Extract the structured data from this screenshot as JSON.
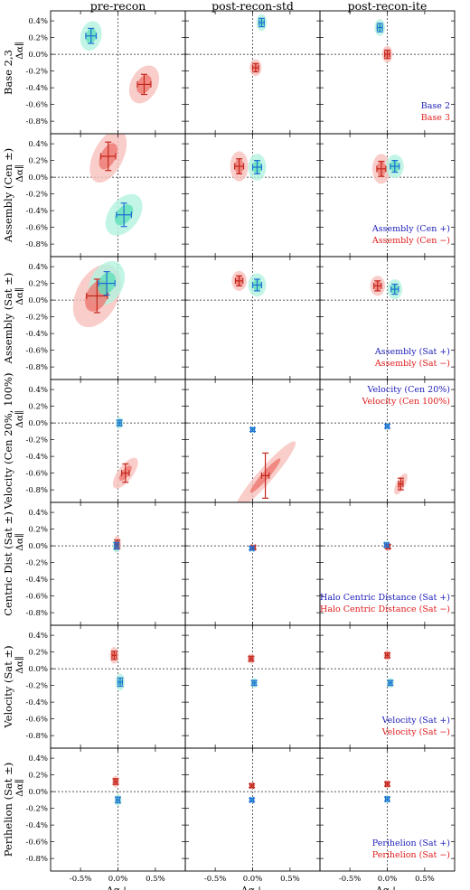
{
  "colors": {
    "blue_outer": "#b3f2df",
    "blue_inner": "#5fe0b9",
    "blue_err": "#1f6fd6",
    "red_outer": "#f8c1bd",
    "red_inner": "#ef7870",
    "red_err": "#c2261b",
    "legend_blue": "#1c1cb8",
    "legend_red": "#e01b1b"
  },
  "chart_data": {
    "type": "scatter",
    "column_titles": [
      "pre-recon",
      "post-recon-std",
      "post-recon-ite"
    ],
    "xlabel": "Δα⊥",
    "ylabel": "Δα∥",
    "xlim": [
      -0.9,
      0.9
    ],
    "ylim": [
      -0.95,
      0.52
    ],
    "xticks": [
      "-0.5%",
      "0.0%",
      "0.5%"
    ],
    "xtick_values": [
      -0.5,
      0.0,
      0.5
    ],
    "yticks": [
      "0.4%",
      "0.2%",
      "0.0%",
      "-0.2%",
      "-0.4%",
      "-0.6%",
      "-0.8%"
    ],
    "ytick_values": [
      0.4,
      0.2,
      0.0,
      -0.2,
      -0.4,
      -0.6,
      -0.8
    ],
    "rows": [
      {
        "label": "Base 2,3",
        "legend": [
          "Base 2",
          "Base 3"
        ],
        "panels": [
          {
            "blue": {
              "x": -0.36,
              "y": 0.22,
              "sx": 0.07,
              "sy": 0.09,
              "rho": -0.1
            },
            "red": {
              "x": 0.35,
              "y": -0.36,
              "sx": 0.09,
              "sy": 0.12,
              "rho": -0.2
            }
          },
          {
            "blue": {
              "x": 0.12,
              "y": 0.38,
              "sx": 0.035,
              "sy": 0.05,
              "rho": 0
            },
            "red": {
              "x": 0.04,
              "y": -0.16,
              "sx": 0.04,
              "sy": 0.05,
              "rho": 0
            }
          },
          {
            "blue": {
              "x": -0.1,
              "y": 0.32,
              "sx": 0.035,
              "sy": 0.05,
              "rho": 0
            },
            "red": {
              "x": 0.0,
              "y": 0.0,
              "sx": 0.035,
              "sy": 0.05,
              "rho": 0
            }
          }
        ]
      },
      {
        "label": "Assembly (Cen ±)",
        "legend": [
          "Assembly (Cen +)",
          "Assembly (Cen −)"
        ],
        "panels": [
          {
            "blue": {
              "x": 0.08,
              "y": -0.45,
              "sx": 0.1,
              "sy": 0.14,
              "rho": -0.3
            },
            "red": {
              "x": -0.13,
              "y": 0.25,
              "sx": 0.1,
              "sy": 0.17,
              "rho": -0.2
            }
          },
          {
            "blue": {
              "x": 0.06,
              "y": 0.12,
              "sx": 0.06,
              "sy": 0.08,
              "rho": 0
            },
            "red": {
              "x": -0.18,
              "y": 0.13,
              "sx": 0.06,
              "sy": 0.09,
              "rho": 0
            }
          },
          {
            "blue": {
              "x": 0.1,
              "y": 0.13,
              "sx": 0.06,
              "sy": 0.07,
              "rho": 0
            },
            "red": {
              "x": -0.08,
              "y": 0.1,
              "sx": 0.06,
              "sy": 0.09,
              "rho": 0
            }
          }
        ]
      },
      {
        "label": "Assembly (Sat ±)",
        "legend": [
          "Assembly (Sat +)",
          "Assembly (Sat −)"
        ],
        "panels": [
          {
            "blue": {
              "x": -0.15,
              "y": 0.2,
              "sx": 0.11,
              "sy": 0.14,
              "rho": -0.2
            },
            "red": {
              "x": -0.28,
              "y": 0.05,
              "sx": 0.14,
              "sy": 0.2,
              "rho": -0.2
            }
          },
          {
            "blue": {
              "x": 0.06,
              "y": 0.18,
              "sx": 0.06,
              "sy": 0.07,
              "rho": 0
            },
            "red": {
              "x": -0.18,
              "y": 0.23,
              "sx": 0.05,
              "sy": 0.06,
              "rho": 0
            }
          },
          {
            "blue": {
              "x": 0.1,
              "y": 0.13,
              "sx": 0.05,
              "sy": 0.06,
              "rho": 0
            },
            "red": {
              "x": -0.13,
              "y": 0.17,
              "sx": 0.05,
              "sy": 0.06,
              "rho": 0
            }
          }
        ]
      },
      {
        "label": "Velocity (Cen 20%, 100%)",
        "legend": [
          "Velocity (Cen 20%)",
          "Velocity (Cen 100%)"
        ],
        "panels": [
          {
            "blue": {
              "x": 0.02,
              "y": 0.0,
              "sx": 0.025,
              "sy": 0.035,
              "rho": 0
            },
            "red": {
              "x": 0.1,
              "y": -0.6,
              "sx": 0.05,
              "sy": 0.11,
              "rho": -0.3
            }
          },
          {
            "blue": {
              "x": 0.0,
              "y": -0.08,
              "sx": 0.02,
              "sy": 0.02,
              "rho": 0
            },
            "red": {
              "x": 0.17,
              "y": -0.63,
              "sx": 0.05,
              "sy": 0.27,
              "rho": -0.35
            }
          },
          {
            "blue": {
              "x": 0.0,
              "y": -0.04,
              "sx": 0.015,
              "sy": 0.02,
              "rho": 0
            },
            "red": {
              "x": 0.18,
              "y": -0.73,
              "sx": 0.03,
              "sy": 0.07,
              "rho": -0.2
            }
          }
        ]
      },
      {
        "label": "Centric Dist (Sat ±)",
        "legend": [
          "Halo Centric Distance (Sat +)",
          "Halo Centric Distance (Sat −)"
        ],
        "panels": [
          {
            "blue": {
              "x": -0.02,
              "y": 0.0,
              "sx": 0.025,
              "sy": 0.04,
              "rho": 0
            },
            "red": {
              "x": -0.01,
              "y": 0.02,
              "sx": 0.025,
              "sy": 0.05,
              "rho": 0
            }
          },
          {
            "blue": {
              "x": -0.01,
              "y": -0.03,
              "sx": 0.02,
              "sy": 0.02,
              "rho": 0
            },
            "red": {
              "x": 0.01,
              "y": -0.02,
              "sx": 0.02,
              "sy": 0.02,
              "rho": 0
            }
          },
          {
            "blue": {
              "x": -0.01,
              "y": 0.01,
              "sx": 0.02,
              "sy": 0.025,
              "rho": 0
            },
            "red": {
              "x": 0.01,
              "y": -0.01,
              "sx": 0.02,
              "sy": 0.025,
              "rho": 0
            }
          }
        ]
      },
      {
        "label": "Velocity (Sat ±)",
        "legend": [
          "Velocity (Sat +)",
          "Velocity (Sat −)"
        ],
        "panels": [
          {
            "blue": {
              "x": 0.03,
              "y": -0.16,
              "sx": 0.03,
              "sy": 0.05,
              "rho": 0
            },
            "red": {
              "x": -0.05,
              "y": 0.16,
              "sx": 0.03,
              "sy": 0.05,
              "rho": 0
            }
          },
          {
            "blue": {
              "x": 0.02,
              "y": -0.17,
              "sx": 0.025,
              "sy": 0.03,
              "rho": 0
            },
            "red": {
              "x": -0.02,
              "y": 0.12,
              "sx": 0.025,
              "sy": 0.03,
              "rho": 0
            }
          },
          {
            "blue": {
              "x": 0.04,
              "y": -0.17,
              "sx": 0.025,
              "sy": 0.03,
              "rho": 0
            },
            "red": {
              "x": 0.0,
              "y": 0.16,
              "sx": 0.025,
              "sy": 0.03,
              "rho": 0
            }
          }
        ]
      },
      {
        "label": "Perihelion (Sat ±)",
        "legend": [
          "Perihelion (Sat +)",
          "Perihelion (Sat −)"
        ],
        "panels": [
          {
            "blue": {
              "x": 0.0,
              "y": -0.1,
              "sx": 0.025,
              "sy": 0.035,
              "rho": 0
            },
            "red": {
              "x": -0.03,
              "y": 0.12,
              "sx": 0.025,
              "sy": 0.035,
              "rho": 0
            }
          },
          {
            "blue": {
              "x": -0.01,
              "y": -0.1,
              "sx": 0.02,
              "sy": 0.02,
              "rho": 0
            },
            "red": {
              "x": -0.01,
              "y": 0.07,
              "sx": 0.02,
              "sy": 0.02,
              "rho": 0
            }
          },
          {
            "blue": {
              "x": 0.0,
              "y": -0.09,
              "sx": 0.02,
              "sy": 0.025,
              "rho": 0
            },
            "red": {
              "x": 0.0,
              "y": 0.09,
              "sx": 0.02,
              "sy": 0.025,
              "rho": 0
            }
          }
        ]
      }
    ]
  }
}
